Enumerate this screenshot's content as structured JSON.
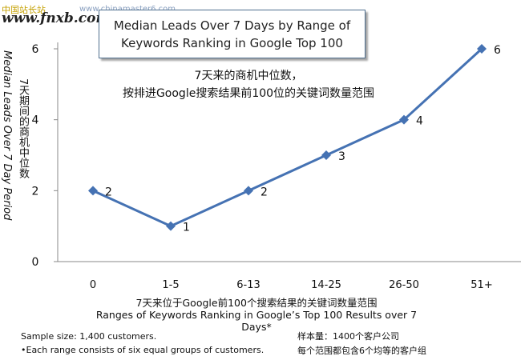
{
  "watermarks": {
    "top_left_cn": "中国站长站",
    "top_url": "www.chinamaster6.com",
    "bottom_left": "www.fnxb.com"
  },
  "title": {
    "line1": "Median Leads Over 7 Days by Range of",
    "line2": "Keywords Ranking in Google Top 100"
  },
  "annotation": {
    "line1": "7天来的商机中位数，",
    "line2": "按排进Google搜索结果前100位的关键词数量范围"
  },
  "axis": {
    "y_label_cn": "7天期间的商机中位数",
    "y_label_en": "Median Leads Over 7 Day Period",
    "x_label_cn": "7天来位于Google前100个搜索结果的关键词数量范围",
    "x_label_en": "Ranges of Keywords Ranking in Google’s Top 100 Results over 7 Days*"
  },
  "notes": {
    "left": [
      "Sample size: 1,400 customers.",
      "•Each range consists of six equal groups of customers."
    ],
    "right": [
      "样本量：1400个客户公司",
      "每个范围都包含6个均等的客户组"
    ]
  },
  "chart_data": {
    "type": "line",
    "title": "Median Leads Over 7 Days by Range of Keywords Ranking in Google Top 100",
    "xlabel": "Ranges of Keywords Ranking in Google’s Top 100 Results over 7 Days*",
    "ylabel": "Median Leads Over 7 Day Period",
    "categories": [
      "0",
      "1-5",
      "6-13",
      "14-25",
      "26-50",
      "51+"
    ],
    "values": [
      2,
      1,
      2,
      3,
      4,
      6
    ],
    "data_labels": [
      "2",
      "1",
      "2",
      "3",
      "4",
      "6"
    ],
    "ylim": [
      0,
      6
    ],
    "y_ticks": [
      "0",
      "2",
      "4",
      "6"
    ],
    "line_color": "#4572b3",
    "grid": false,
    "legend": false
  }
}
